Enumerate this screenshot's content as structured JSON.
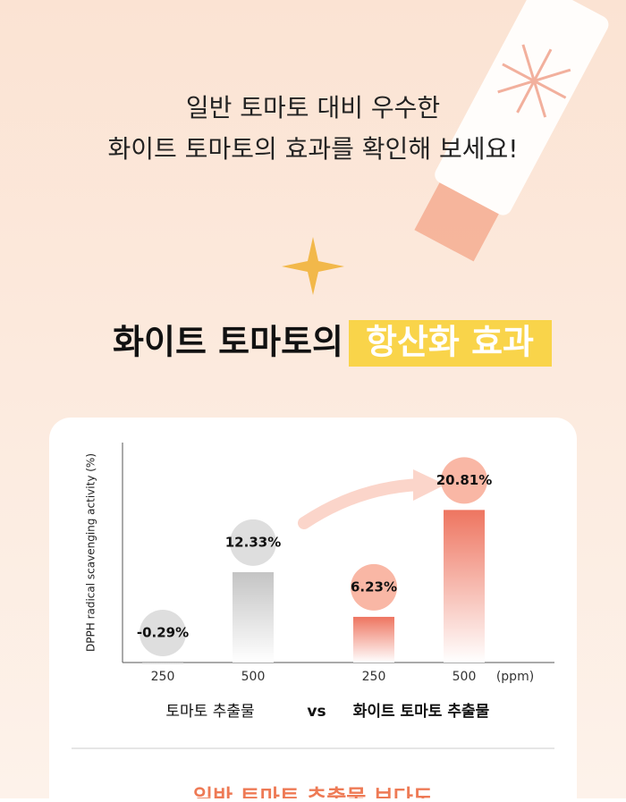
{
  "header": {
    "lines": [
      "일반 토마토 대비 우수한",
      "화이트 토마토의 효과를 확인해 보세요!"
    ],
    "heading": "화이트 토마토의",
    "heading_highlight": "항산화 효과"
  },
  "chart_data": {
    "type": "bar",
    "y_label": "DPPH radical scavenging activity (%)",
    "categories": [
      "250",
      "500"
    ],
    "x_unit": "(ppm)",
    "versus": "vs",
    "series": [
      {
        "name": "토마토 추출물",
        "color": "#c4c4c4",
        "values": [
          -0.29,
          12.33
        ],
        "value_labels": [
          "-0.29%",
          "12.33%"
        ]
      },
      {
        "name": "화이트 토마토 추출물",
        "color": "#ee7560",
        "values": [
          6.23,
          20.81
        ],
        "value_labels": [
          "6.23%",
          "20.81%"
        ]
      }
    ],
    "ylim": [
      0,
      30
    ]
  },
  "footer": {
    "text": "일반 토마토 추출물 보다도"
  }
}
